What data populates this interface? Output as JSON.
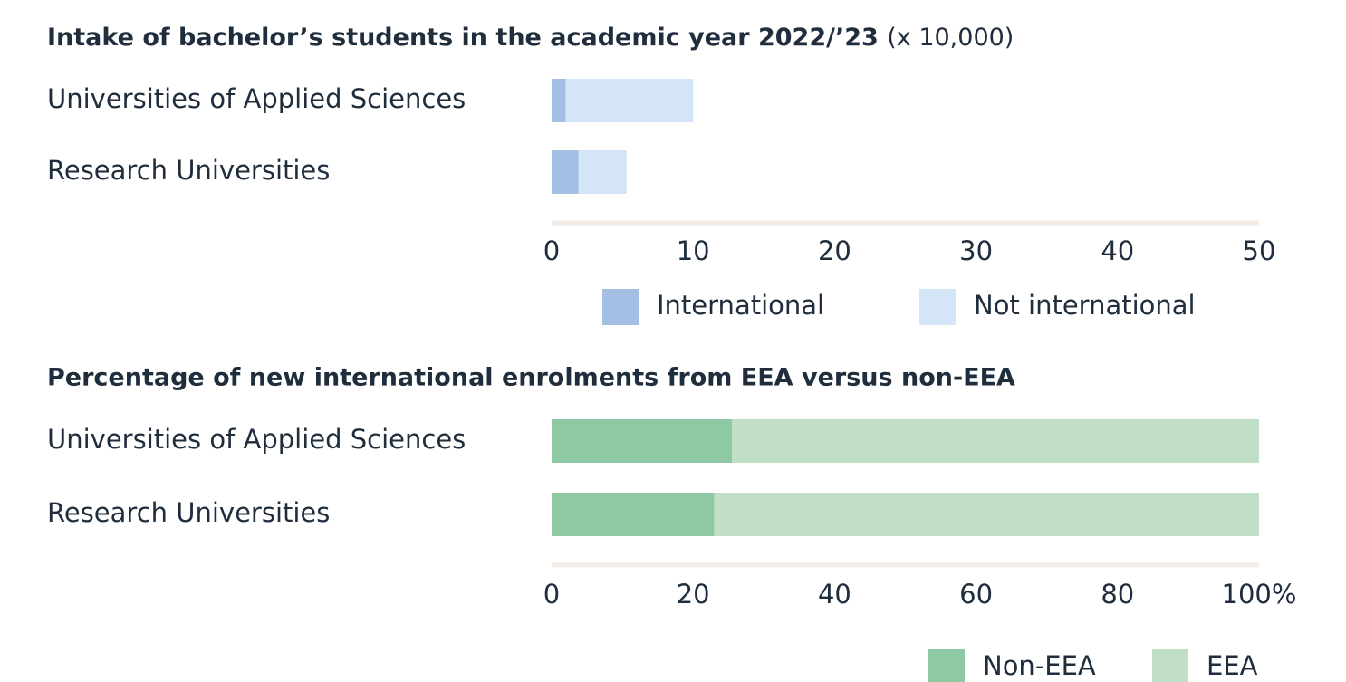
{
  "chart_data": [
    {
      "type": "bar",
      "stacked": true,
      "orientation": "horizontal",
      "title": "Intake of bachelor’s students in the academic year 2022/’23",
      "title_note": "(x 10,000)",
      "categories": [
        "Universities of Applied Sciences",
        "Research Universities"
      ],
      "series": [
        {
          "name": "International",
          "color": "#a3bfe3",
          "values": [
            1,
            1.9
          ]
        },
        {
          "name": "Not international",
          "color": "#d4e5f7",
          "values": [
            9,
            3.4
          ]
        }
      ],
      "xlim": [
        0,
        50
      ],
      "xticks": [
        0,
        10,
        20,
        30,
        40,
        50
      ]
    },
    {
      "type": "bar",
      "stacked": true,
      "orientation": "horizontal",
      "title": "Percentage of new international enrolments from EEA versus non-EEA",
      "categories": [
        "Universities of Applied Sciences",
        "Research Universities"
      ],
      "series": [
        {
          "name": "Non-EEA",
          "color": "#8ec9a3",
          "values": [
            25.5,
            23
          ]
        },
        {
          "name": "EEA",
          "color": "#c0dfc6",
          "values": [
            74.5,
            77
          ]
        }
      ],
      "xlim": [
        0,
        100
      ],
      "xticks": [
        0,
        20,
        40,
        60,
        80,
        {
          "value": 100,
          "label": "100%"
        }
      ]
    }
  ]
}
